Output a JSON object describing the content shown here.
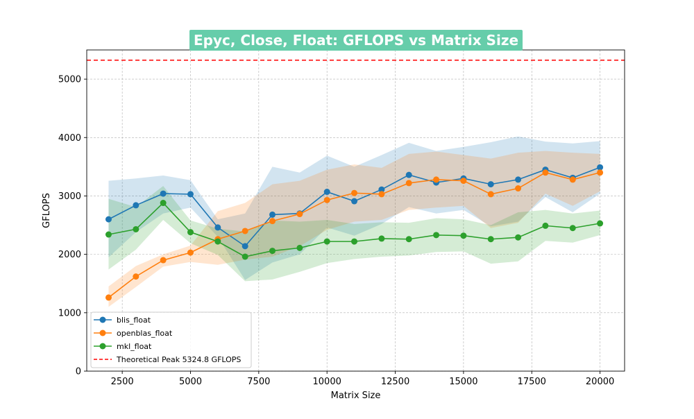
{
  "chart_data": {
    "type": "line",
    "title": "Epyc, Close, Float: GFLOPS vs Matrix Size",
    "xlabel": "Matrix Size",
    "ylabel": "GFLOPS",
    "xlim": [
      1200,
      20900
    ],
    "ylim": [
      0,
      5500
    ],
    "xticks": [
      2500,
      5000,
      7500,
      10000,
      12500,
      15000,
      17500,
      20000
    ],
    "yticks": [
      0,
      1000,
      2000,
      3000,
      4000,
      5000
    ],
    "grid": true,
    "legend_position": "lower-left",
    "x": [
      2000,
      3000,
      4000,
      5000,
      6000,
      7000,
      8000,
      9000,
      10000,
      11000,
      12000,
      13000,
      14000,
      15000,
      16000,
      17000,
      18000,
      19000,
      20000
    ],
    "series": [
      {
        "name": "blis_float",
        "color": "#1f77b4",
        "values": [
          2600,
          2840,
          3040,
          3030,
          2460,
          2140,
          2680,
          2700,
          3070,
          2910,
          3110,
          3360,
          3230,
          3300,
          3200,
          3280,
          3450,
          3310,
          3490
        ],
        "band_upper": [
          3260,
          3300,
          3350,
          3270,
          2600,
          2700,
          3500,
          3400,
          3690,
          3500,
          3700,
          3910,
          3770,
          3840,
          3920,
          4020,
          3930,
          3900,
          3940
        ],
        "band_lower": [
          1950,
          2380,
          2700,
          2800,
          2300,
          1560,
          1860,
          2000,
          2460,
          2320,
          2520,
          2810,
          2700,
          2760,
          2480,
          2560,
          2980,
          2720,
          3040
        ]
      },
      {
        "name": "openblas_float",
        "color": "#ff7f0e",
        "values": [
          1260,
          1620,
          1900,
          2030,
          2260,
          2400,
          2570,
          2690,
          2930,
          3050,
          3030,
          3220,
          3280,
          3260,
          3030,
          3130,
          3400,
          3280,
          3400
        ],
        "band_upper": [
          1450,
          1800,
          2000,
          2150,
          2740,
          2880,
          3200,
          3260,
          3450,
          3540,
          3480,
          3720,
          3760,
          3700,
          3640,
          3740,
          3770,
          3740,
          3720
        ],
        "band_lower": [
          1100,
          1440,
          1790,
          1870,
          1820,
          1910,
          1960,
          2140,
          2420,
          2560,
          2590,
          2760,
          2800,
          2830,
          2450,
          2540,
          3040,
          2830,
          3080
        ]
      },
      {
        "name": "mkl_float",
        "color": "#2ca02c",
        "values": [
          2340,
          2430,
          2880,
          2380,
          2220,
          1960,
          2060,
          2110,
          2220,
          2220,
          2270,
          2260,
          2330,
          2320,
          2260,
          2290,
          2490,
          2450,
          2530
        ],
        "band_upper": [
          2950,
          2810,
          3170,
          2580,
          2440,
          2390,
          2580,
          2560,
          2590,
          2520,
          2550,
          2540,
          2620,
          2600,
          2500,
          2720,
          2760,
          2700,
          2750
        ],
        "band_lower": [
          1740,
          2080,
          2590,
          2190,
          1990,
          1540,
          1570,
          1700,
          1850,
          1920,
          1960,
          1980,
          2040,
          2050,
          1840,
          1880,
          2230,
          2200,
          2330
        ]
      }
    ],
    "reference_line": {
      "name": "Theoretical Peak 5324.8 GFLOPS",
      "value": 5324.8,
      "color": "#ff0000",
      "style": "dashed"
    }
  }
}
